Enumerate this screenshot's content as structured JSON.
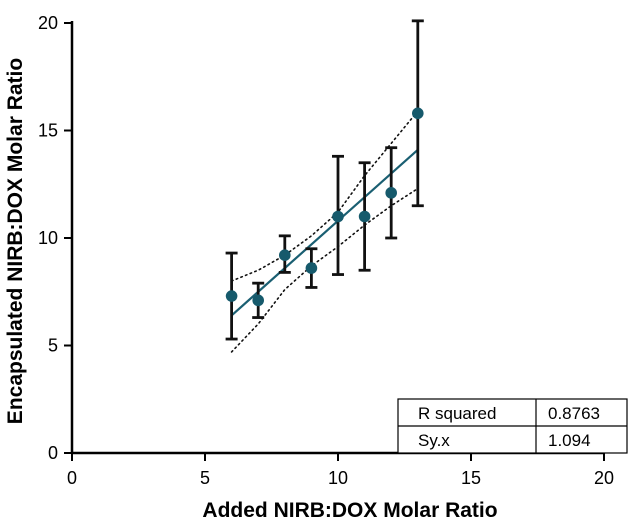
{
  "chart_data": {
    "type": "scatter",
    "xlabel": "Added NIRB:DOX Molar Ratio",
    "ylabel": "Encapsulated NIRB:DOX Molar Ratio",
    "xlim": [
      0,
      20
    ],
    "ylim": [
      0,
      20
    ],
    "xticks": [
      0,
      5,
      10,
      15,
      20
    ],
    "yticks": [
      0,
      5,
      10,
      15,
      20
    ],
    "grid": false,
    "points": [
      {
        "x": 6,
        "y": 7.3,
        "err_low": 5.3,
        "err_high": 9.3
      },
      {
        "x": 7,
        "y": 7.1,
        "err_low": 6.3,
        "err_high": 7.9
      },
      {
        "x": 8,
        "y": 9.2,
        "err_low": 8.4,
        "err_high": 10.1
      },
      {
        "x": 9,
        "y": 8.6,
        "err_low": 7.7,
        "err_high": 9.5
      },
      {
        "x": 10,
        "y": 11.0,
        "err_low": 8.3,
        "err_high": 13.8
      },
      {
        "x": 11,
        "y": 11.0,
        "err_low": 8.5,
        "err_high": 13.5
      },
      {
        "x": 12,
        "y": 12.1,
        "err_low": 10.0,
        "err_high": 14.2
      },
      {
        "x": 13,
        "y": 15.8,
        "err_low": 11.5,
        "err_high": 20.1
      }
    ],
    "fit_line": {
      "x": [
        6,
        13
      ],
      "y": [
        6.4,
        14.1
      ]
    },
    "confidence_band": {
      "upper": {
        "x": [
          6,
          7,
          8,
          9,
          10,
          11,
          12,
          13
        ],
        "y": [
          8.0,
          8.5,
          9.2,
          10.1,
          11.2,
          12.9,
          14.4,
          15.9
        ]
      },
      "lower": {
        "x": [
          6,
          7,
          8,
          9,
          10,
          11,
          12,
          13
        ],
        "y": [
          4.7,
          6.0,
          7.6,
          8.7,
          9.6,
          10.6,
          11.5,
          12.3
        ]
      }
    },
    "stats": [
      {
        "label": "R squared",
        "value": "0.8763"
      },
      {
        "label": "Sy.x",
        "value": "1.094"
      }
    ],
    "colors": {
      "marker": "#165a6c",
      "fit": "#1a5f72",
      "error_bar": "#111111",
      "band": "#111111"
    }
  }
}
